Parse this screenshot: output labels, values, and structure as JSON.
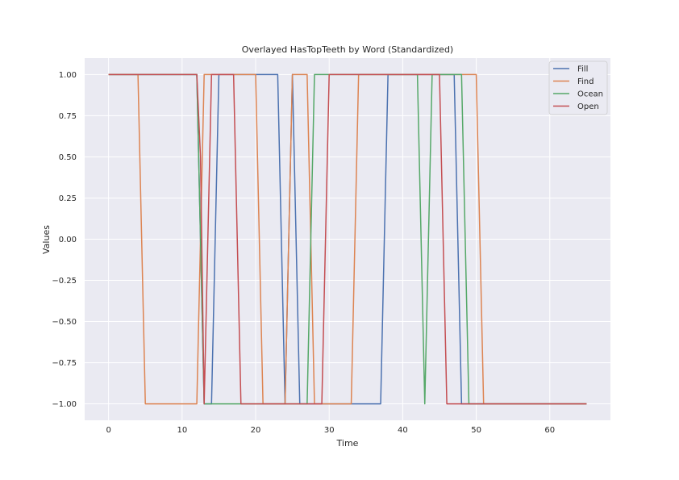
{
  "chart_data": {
    "type": "line",
    "title": "Overlayed HasTopTeeth by Word (Standardized)",
    "xlabel": "Time",
    "ylabel": "Values",
    "xlim": [
      -3.25,
      68.25
    ],
    "ylim": [
      -1.1,
      1.1
    ],
    "grid": true,
    "legend_position": "top-right",
    "xticks": [
      0,
      10,
      20,
      30,
      40,
      50,
      60
    ],
    "yticks": [
      -1.0,
      -0.75,
      -0.5,
      -0.25,
      0.0,
      0.25,
      0.5,
      0.75,
      1.0
    ],
    "ytick_labels": [
      "−1.00",
      "−0.75",
      "−0.50",
      "−0.25",
      "0.00",
      "0.25",
      "0.50",
      "0.75",
      "1.00"
    ],
    "series": [
      {
        "name": "Fill",
        "color": "#4c72b0",
        "points": [
          [
            0,
            1
          ],
          [
            12,
            1
          ],
          [
            13,
            -1
          ],
          [
            14,
            -1
          ],
          [
            15,
            1
          ],
          [
            23,
            1
          ],
          [
            24,
            -1
          ],
          [
            25,
            1
          ],
          [
            26,
            -1
          ],
          [
            33,
            -1
          ],
          [
            37,
            -1
          ],
          [
            38,
            1
          ],
          [
            47,
            1
          ],
          [
            48,
            -1
          ],
          [
            65,
            -1
          ]
        ]
      },
      {
        "name": "Find",
        "color": "#dd8452",
        "points": [
          [
            0,
            1
          ],
          [
            4,
            1
          ],
          [
            5,
            -1
          ],
          [
            12,
            -1
          ],
          [
            13,
            1
          ],
          [
            20,
            1
          ],
          [
            21,
            -1
          ],
          [
            24,
            -1
          ],
          [
            25,
            1
          ],
          [
            27,
            1
          ],
          [
            28,
            -1
          ],
          [
            33,
            -1
          ],
          [
            34,
            1
          ],
          [
            50,
            1
          ],
          [
            51,
            -1
          ],
          [
            65,
            -1
          ]
        ]
      },
      {
        "name": "Ocean",
        "color": "#55a868",
        "points": [
          [
            0,
            1
          ],
          [
            12,
            1
          ],
          [
            13,
            -1
          ],
          [
            27,
            -1
          ],
          [
            28,
            1
          ],
          [
            42,
            1
          ],
          [
            43,
            -1
          ],
          [
            44,
            1
          ],
          [
            48,
            1
          ],
          [
            49,
            -1
          ],
          [
            65,
            -1
          ]
        ]
      },
      {
        "name": "Open",
        "color": "#c44e52",
        "points": [
          [
            0,
            1
          ],
          [
            12,
            1
          ],
          [
            12.5,
            0.5
          ],
          [
            13,
            -1
          ],
          [
            14,
            1
          ],
          [
            17,
            1
          ],
          [
            18,
            -1
          ],
          [
            29,
            -1
          ],
          [
            30,
            1
          ],
          [
            45,
            1
          ],
          [
            46,
            -1
          ],
          [
            65,
            -1
          ]
        ]
      }
    ]
  }
}
